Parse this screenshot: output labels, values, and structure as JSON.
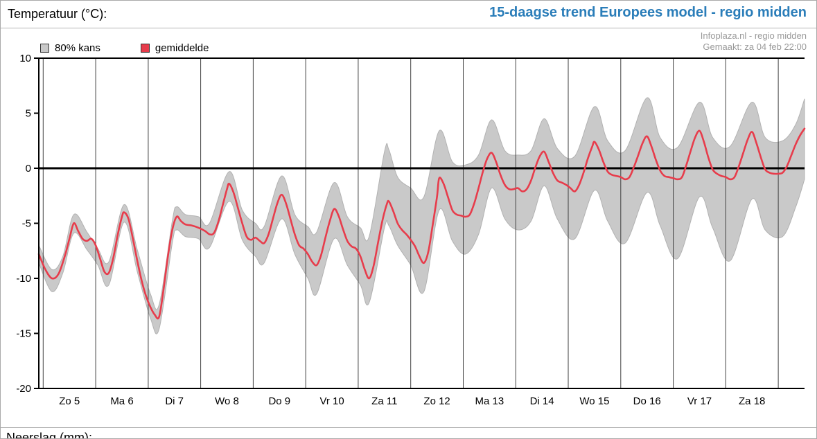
{
  "header": {
    "left_title": "Temperatuur (°C):",
    "right_title": "15-daagse trend Europees model - regio midden",
    "source_line1": "Infoplaza.nl - regio midden",
    "source_line2": "Gemaakt: za 04 feb 22:00"
  },
  "footer": {
    "next_section_label": "Neerslag (mm):"
  },
  "colors": {
    "title_blue": "#2a7db9",
    "meta_gray": "#9a9a9a",
    "band_fill": "#c9c9c9",
    "band_edge": "#b2b2b2",
    "mean_line": "#e73c4b",
    "grid": "#3f3f3f",
    "axis": "#000000"
  },
  "chart_data": {
    "type": "line-with-band",
    "title": "15-daagse trend Europees model - regio midden",
    "ylabel": "Temperatuur (°C)",
    "legend": [
      "80% kans",
      "gemiddelde"
    ],
    "legend_position": "top-left",
    "grid": "vertical-day-lines",
    "zero_line": true,
    "ylim": [
      -20,
      10
    ],
    "yticks": [
      10,
      5,
      0,
      -5,
      -10,
      -15,
      -20
    ],
    "x_hours_range": [
      0,
      350
    ],
    "x_start_label": "za 04 feb 22:00",
    "x_gridline_hours": [
      2,
      26,
      50,
      74,
      98,
      122,
      146,
      170,
      194,
      218,
      242,
      266,
      290,
      314,
      338
    ],
    "x_day_labels": [
      {
        "label": "Zo 5",
        "hour": 14
      },
      {
        "label": "Ma 6",
        "hour": 38
      },
      {
        "label": "Di 7",
        "hour": 62
      },
      {
        "label": "Wo 8",
        "hour": 86
      },
      {
        "label": "Do 9",
        "hour": 110
      },
      {
        "label": "Vr 10",
        "hour": 134
      },
      {
        "label": "Za 11",
        "hour": 158
      },
      {
        "label": "Zo 12",
        "hour": 182
      },
      {
        "label": "Ma 13",
        "hour": 206
      },
      {
        "label": "Di 14",
        "hour": 230
      },
      {
        "label": "Wo 15",
        "hour": 254
      },
      {
        "label": "Do 16",
        "hour": 278
      },
      {
        "label": "Vr 17",
        "hour": 302
      },
      {
        "label": "Za 18",
        "hour": 326
      }
    ],
    "mean_series": [
      [
        0,
        -7.8
      ],
      [
        3,
        -9.2
      ],
      [
        6,
        -10.0
      ],
      [
        9,
        -9.6
      ],
      [
        12,
        -7.9
      ],
      [
        14,
        -6.4
      ],
      [
        16,
        -5.0
      ],
      [
        18,
        -5.7
      ],
      [
        20,
        -6.4
      ],
      [
        22,
        -6.6
      ],
      [
        24,
        -6.4
      ],
      [
        26,
        -7.0
      ],
      [
        28,
        -8.2
      ],
      [
        30,
        -9.4
      ],
      [
        32,
        -9.5
      ],
      [
        34,
        -8.2
      ],
      [
        36,
        -6.1
      ],
      [
        38,
        -4.4
      ],
      [
        39,
        -4.0
      ],
      [
        41,
        -4.6
      ],
      [
        43,
        -6.4
      ],
      [
        45,
        -8.4
      ],
      [
        47,
        -10.2
      ],
      [
        49,
        -11.6
      ],
      [
        51,
        -12.6
      ],
      [
        53,
        -13.3
      ],
      [
        55,
        -13.5
      ],
      [
        57,
        -11.0
      ],
      [
        59,
        -8.0
      ],
      [
        61,
        -5.6
      ],
      [
        63,
        -4.4
      ],
      [
        65,
        -4.8
      ],
      [
        67,
        -5.1
      ],
      [
        70,
        -5.2
      ],
      [
        73,
        -5.4
      ],
      [
        76,
        -5.7
      ],
      [
        78,
        -6.0
      ],
      [
        80,
        -5.9
      ],
      [
        82,
        -4.9
      ],
      [
        84,
        -3.4
      ],
      [
        86,
        -1.9
      ],
      [
        87,
        -1.4
      ],
      [
        89,
        -2.2
      ],
      [
        91,
        -3.6
      ],
      [
        93,
        -5.0
      ],
      [
        95,
        -6.2
      ],
      [
        97,
        -6.5
      ],
      [
        99,
        -6.3
      ],
      [
        101,
        -6.6
      ],
      [
        103,
        -6.8
      ],
      [
        105,
        -6.0
      ],
      [
        107,
        -4.6
      ],
      [
        109,
        -3.2
      ],
      [
        111,
        -2.4
      ],
      [
        113,
        -3.2
      ],
      [
        115,
        -4.6
      ],
      [
        117,
        -6.0
      ],
      [
        119,
        -7.0
      ],
      [
        121,
        -7.3
      ],
      [
        123,
        -7.8
      ],
      [
        125,
        -8.5
      ],
      [
        127,
        -8.8
      ],
      [
        129,
        -7.9
      ],
      [
        131,
        -6.3
      ],
      [
        133,
        -4.8
      ],
      [
        135,
        -3.7
      ],
      [
        137,
        -4.3
      ],
      [
        139,
        -5.5
      ],
      [
        141,
        -6.6
      ],
      [
        143,
        -7.1
      ],
      [
        145,
        -7.3
      ],
      [
        147,
        -8.0
      ],
      [
        149,
        -9.2
      ],
      [
        151,
        -10.0
      ],
      [
        153,
        -8.9
      ],
      [
        155,
        -6.8
      ],
      [
        157,
        -4.8
      ],
      [
        159,
        -3.3
      ],
      [
        160,
        -3.0
      ],
      [
        162,
        -3.9
      ],
      [
        164,
        -5.0
      ],
      [
        166,
        -5.6
      ],
      [
        168,
        -6.0
      ],
      [
        170,
        -6.5
      ],
      [
        172,
        -7.1
      ],
      [
        174,
        -8.0
      ],
      [
        176,
        -8.6
      ],
      [
        178,
        -7.6
      ],
      [
        180,
        -5.2
      ],
      [
        182,
        -2.6
      ],
      [
        183,
        -0.9
      ],
      [
        185,
        -1.4
      ],
      [
        187,
        -2.6
      ],
      [
        189,
        -3.8
      ],
      [
        191,
        -4.2
      ],
      [
        193,
        -4.3
      ],
      [
        195,
        -4.4
      ],
      [
        197,
        -4.2
      ],
      [
        199,
        -3.2
      ],
      [
        201,
        -1.8
      ],
      [
        203,
        -0.3
      ],
      [
        205,
        0.9
      ],
      [
        207,
        1.4
      ],
      [
        209,
        0.6
      ],
      [
        211,
        -0.6
      ],
      [
        213,
        -1.5
      ],
      [
        215,
        -1.9
      ],
      [
        217,
        -1.9
      ],
      [
        219,
        -1.8
      ],
      [
        221,
        -2.1
      ],
      [
        223,
        -1.9
      ],
      [
        225,
        -1.1
      ],
      [
        227,
        0.1
      ],
      [
        229,
        1.1
      ],
      [
        231,
        1.5
      ],
      [
        233,
        0.6
      ],
      [
        235,
        -0.4
      ],
      [
        237,
        -1.1
      ],
      [
        239,
        -1.3
      ],
      [
        241,
        -1.5
      ],
      [
        243,
        -1.8
      ],
      [
        245,
        -2.1
      ],
      [
        247,
        -1.5
      ],
      [
        249,
        -0.4
      ],
      [
        251,
        0.9
      ],
      [
        253,
        2.0
      ],
      [
        254,
        2.4
      ],
      [
        256,
        1.7
      ],
      [
        258,
        0.6
      ],
      [
        260,
        -0.3
      ],
      [
        262,
        -0.6
      ],
      [
        264,
        -0.7
      ],
      [
        266,
        -0.8
      ],
      [
        268,
        -1.0
      ],
      [
        270,
        -0.8
      ],
      [
        272,
        0.1
      ],
      [
        274,
        1.2
      ],
      [
        276,
        2.3
      ],
      [
        278,
        2.9
      ],
      [
        280,
        2.0
      ],
      [
        282,
        0.8
      ],
      [
        284,
        -0.2
      ],
      [
        286,
        -0.7
      ],
      [
        288,
        -0.8
      ],
      [
        290,
        -0.9
      ],
      [
        292,
        -1.0
      ],
      [
        294,
        -0.8
      ],
      [
        296,
        0.3
      ],
      [
        298,
        1.6
      ],
      [
        300,
        2.8
      ],
      [
        302,
        3.4
      ],
      [
        304,
        2.4
      ],
      [
        306,
        1.0
      ],
      [
        308,
        -0.1
      ],
      [
        310,
        -0.5
      ],
      [
        312,
        -0.7
      ],
      [
        314,
        -0.8
      ],
      [
        316,
        -1.0
      ],
      [
        318,
        -0.8
      ],
      [
        320,
        0.2
      ],
      [
        322,
        1.4
      ],
      [
        324,
        2.6
      ],
      [
        326,
        3.3
      ],
      [
        328,
        2.3
      ],
      [
        330,
        1.0
      ],
      [
        332,
        -0.1
      ],
      [
        334,
        -0.4
      ],
      [
        336,
        -0.5
      ],
      [
        338,
        -0.5
      ],
      [
        340,
        -0.4
      ],
      [
        342,
        0.2
      ],
      [
        344,
        1.2
      ],
      [
        346,
        2.2
      ],
      [
        348,
        3.0
      ],
      [
        350,
        3.6
      ]
    ],
    "band_upper": [
      [
        0,
        -7.0
      ],
      [
        6,
        -9.2
      ],
      [
        11,
        -8.0
      ],
      [
        16,
        -4.2
      ],
      [
        22,
        -5.8
      ],
      [
        27,
        -7.3
      ],
      [
        32,
        -8.5
      ],
      [
        39,
        -3.3
      ],
      [
        45,
        -7.4
      ],
      [
        51,
        -11.4
      ],
      [
        55,
        -12.4
      ],
      [
        61,
        -4.8
      ],
      [
        63,
        -3.5
      ],
      [
        67,
        -4.2
      ],
      [
        73,
        -4.4
      ],
      [
        78,
        -5.0
      ],
      [
        87,
        -0.3
      ],
      [
        93,
        -3.8
      ],
      [
        99,
        -5.0
      ],
      [
        103,
        -5.3
      ],
      [
        111,
        -0.7
      ],
      [
        117,
        -4.2
      ],
      [
        123,
        -5.3
      ],
      [
        127,
        -5.8
      ],
      [
        135,
        -1.3
      ],
      [
        141,
        -4.4
      ],
      [
        147,
        -5.4
      ],
      [
        151,
        -6.2
      ],
      [
        158,
        1.5
      ],
      [
        160,
        1.7
      ],
      [
        164,
        -0.8
      ],
      [
        170,
        -1.8
      ],
      [
        176,
        -2.6
      ],
      [
        183,
        3.4
      ],
      [
        189,
        0.6
      ],
      [
        195,
        0.3
      ],
      [
        201,
        1.2
      ],
      [
        207,
        4.4
      ],
      [
        213,
        1.6
      ],
      [
        219,
        1.2
      ],
      [
        225,
        1.6
      ],
      [
        231,
        4.5
      ],
      [
        237,
        1.8
      ],
      [
        245,
        1.1
      ],
      [
        254,
        5.6
      ],
      [
        260,
        2.5
      ],
      [
        268,
        1.6
      ],
      [
        278,
        6.4
      ],
      [
        284,
        2.8
      ],
      [
        292,
        1.9
      ],
      [
        302,
        6.0
      ],
      [
        308,
        2.8
      ],
      [
        316,
        2.0
      ],
      [
        326,
        6.0
      ],
      [
        332,
        2.8
      ],
      [
        340,
        2.5
      ],
      [
        346,
        4.0
      ],
      [
        350,
        6.3
      ]
    ],
    "band_lower": [
      [
        0,
        -8.6
      ],
      [
        6,
        -11.2
      ],
      [
        11,
        -9.5
      ],
      [
        16,
        -5.9
      ],
      [
        22,
        -7.4
      ],
      [
        27,
        -8.8
      ],
      [
        32,
        -10.6
      ],
      [
        39,
        -4.9
      ],
      [
        45,
        -9.4
      ],
      [
        51,
        -13.6
      ],
      [
        55,
        -14.6
      ],
      [
        61,
        -6.8
      ],
      [
        63,
        -5.6
      ],
      [
        67,
        -6.2
      ],
      [
        73,
        -6.4
      ],
      [
        78,
        -7.2
      ],
      [
        87,
        -3.0
      ],
      [
        93,
        -6.5
      ],
      [
        99,
        -8.0
      ],
      [
        103,
        -8.6
      ],
      [
        111,
        -4.6
      ],
      [
        117,
        -7.8
      ],
      [
        123,
        -10.0
      ],
      [
        127,
        -11.4
      ],
      [
        135,
        -6.4
      ],
      [
        141,
        -8.8
      ],
      [
        147,
        -10.6
      ],
      [
        151,
        -12.2
      ],
      [
        158,
        -5.4
      ],
      [
        160,
        -5.2
      ],
      [
        164,
        -7.0
      ],
      [
        170,
        -8.8
      ],
      [
        176,
        -11.2
      ],
      [
        183,
        -3.8
      ],
      [
        189,
        -6.6
      ],
      [
        195,
        -7.8
      ],
      [
        201,
        -6.0
      ],
      [
        207,
        -1.8
      ],
      [
        213,
        -4.6
      ],
      [
        219,
        -5.6
      ],
      [
        225,
        -4.8
      ],
      [
        231,
        -1.6
      ],
      [
        237,
        -4.6
      ],
      [
        245,
        -6.4
      ],
      [
        254,
        -2.0
      ],
      [
        260,
        -4.8
      ],
      [
        268,
        -6.8
      ],
      [
        278,
        -2.2
      ],
      [
        284,
        -5.2
      ],
      [
        292,
        -8.2
      ],
      [
        302,
        -2.6
      ],
      [
        308,
        -5.4
      ],
      [
        316,
        -8.4
      ],
      [
        326,
        -2.8
      ],
      [
        332,
        -5.6
      ],
      [
        340,
        -6.2
      ],
      [
        346,
        -3.5
      ],
      [
        350,
        -1.0
      ]
    ]
  }
}
